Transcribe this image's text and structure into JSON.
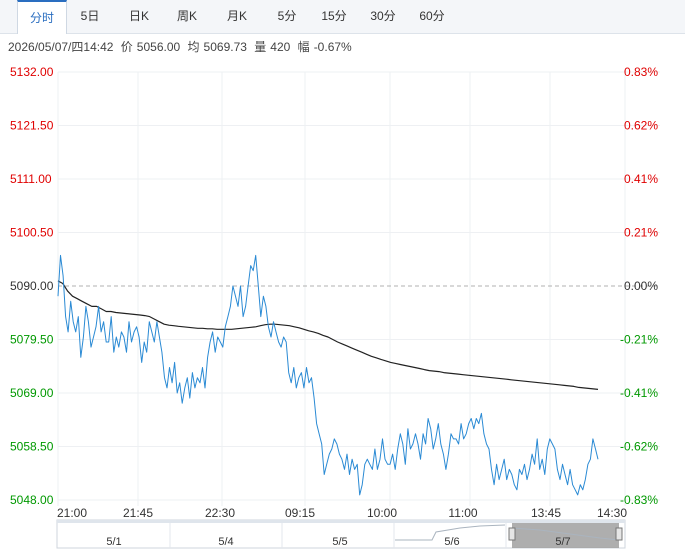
{
  "tabs": [
    {
      "label": "分时",
      "active": true
    },
    {
      "label": "5日",
      "active": false
    },
    {
      "label": "日K",
      "active": false
    },
    {
      "label": "周K",
      "active": false
    },
    {
      "label": "月K",
      "active": false
    },
    {
      "label": "5分",
      "active": false
    },
    {
      "label": "15分",
      "active": false
    },
    {
      "label": "30分",
      "active": false
    },
    {
      "label": "60分",
      "active": false
    }
  ],
  "info": {
    "datetime": "2026/05/07/四14:42",
    "price_label": "价",
    "price": "5056.00",
    "avg_label": "均",
    "avg": "5069.73",
    "vol_label": "量",
    "vol": "420",
    "chg_label": "幅",
    "chg": "-0.67%"
  },
  "chart_data": {
    "type": "line",
    "ylim": [
      5048.0,
      5132.0
    ],
    "prev_close": 5090.0,
    "y_ticks": [
      {
        "price": 5132.0,
        "label": "5132.00",
        "pct": "0.83%"
      },
      {
        "price": 5121.5,
        "label": "5121.50",
        "pct": "0.62%"
      },
      {
        "price": 5111.0,
        "label": "5111.00",
        "pct": "0.41%"
      },
      {
        "price": 5100.5,
        "label": "5100.50",
        "pct": "0.21%"
      },
      {
        "price": 5090.0,
        "label": "5090.00",
        "pct": "0.00%"
      },
      {
        "price": 5079.5,
        "label": "5079.50",
        "pct": "-0.21%"
      },
      {
        "price": 5069.0,
        "label": "5069.00",
        "pct": "-0.41%"
      },
      {
        "price": 5058.5,
        "label": "5058.50",
        "pct": "-0.62%"
      },
      {
        "price": 5048.0,
        "label": "5048.00",
        "pct": "-0.83%"
      }
    ],
    "x_ticks": [
      "21:00",
      "21:45",
      "22:30",
      "09:15",
      "10:00",
      "11:00",
      "13:45",
      "14:30"
    ],
    "colors": {
      "up": "#e00000",
      "down": "#009900",
      "flat": "#333333",
      "price_line": "#2a8ad4",
      "avg_line": "#222222"
    },
    "series": [
      {
        "values": [
          5088,
          5096,
          5092,
          5084,
          5081,
          5087,
          5083,
          5081,
          5084,
          5076,
          5080,
          5086,
          5083,
          5078,
          5080,
          5082,
          5086,
          5081,
          5083,
          5079,
          5079,
          5084,
          5077,
          5080,
          5078,
          5081,
          5080,
          5077,
          5083,
          5079,
          5081,
          5082,
          5080,
          5075,
          5079,
          5077,
          5083,
          5081,
          5079,
          5083,
          5080,
          5077,
          5072,
          5070,
          5074,
          5071,
          5075,
          5069,
          5071,
          5067,
          5070,
          5072,
          5068,
          5073,
          5070,
          5072,
          5071,
          5074,
          5070,
          5076,
          5079,
          5081,
          5077,
          5080,
          5079,
          5078,
          5082,
          5084,
          5086,
          5090,
          5088,
          5086,
          5090,
          5084,
          5086,
          5090,
          5094,
          5093,
          5096,
          5090,
          5084,
          5088,
          5086,
          5082,
          5080,
          5083,
          5081,
          5079,
          5078,
          5080,
          5079,
          5073,
          5071,
          5074,
          5070,
          5072,
          5073,
          5070,
          5074,
          5071,
          5072,
          5068,
          5063,
          5061,
          5059,
          5053,
          5055,
          5057,
          5058,
          5060,
          5059,
          5057,
          5056,
          5054,
          5057,
          5053,
          5056,
          5054,
          5055,
          5049,
          5051,
          5055,
          5056,
          5055,
          5054,
          5058,
          5054,
          5056,
          5060,
          5056,
          5055,
          5055,
          5057,
          5054,
          5058,
          5061,
          5059,
          5055,
          5062,
          5058,
          5059,
          5061,
          5059,
          5056,
          5061,
          5059,
          5064,
          5062,
          5058,
          5060,
          5063,
          5059,
          5057,
          5054,
          5057,
          5061,
          5060,
          5060,
          5059,
          5063,
          5060,
          5061,
          5063,
          5064,
          5062,
          5064,
          5063,
          5065,
          5061,
          5059,
          5058,
          5054,
          5051,
          5055,
          5052,
          5054,
          5056,
          5052,
          5054,
          5053,
          5051,
          5050,
          5054,
          5053,
          5055,
          5052,
          5054,
          5057,
          5055,
          5060,
          5054,
          5056,
          5053,
          5058,
          5060,
          5059,
          5058,
          5054,
          5052,
          5055,
          5053,
          5051,
          5054,
          5051,
          5050,
          5049,
          5051,
          5050,
          5052,
          5055,
          5056,
          5060,
          5058,
          5056
        ]
      },
      {
        "values": [
          5091,
          5090.5,
          5089,
          5088,
          5087.5,
          5087,
          5086.5,
          5086,
          5086,
          5085.5,
          5085,
          5085,
          5084.8,
          5084.7,
          5084.6,
          5084.5,
          5084.4,
          5084.3,
          5084.2,
          5084,
          5083.5,
          5083,
          5082.5,
          5082.3,
          5082.2,
          5082.1,
          5082,
          5081.9,
          5081.8,
          5081.7,
          5081.7,
          5081.6,
          5081.6,
          5081.5,
          5081.5,
          5081.5,
          5081.5,
          5081.6,
          5081.7,
          5081.8,
          5081.9,
          5082,
          5082.2,
          5082.4,
          5082.5,
          5082.5,
          5082.4,
          5082.3,
          5082.2,
          5082,
          5081.8,
          5081.5,
          5081.2,
          5081,
          5080.7,
          5080.3,
          5080,
          5079.5,
          5079,
          5078.6,
          5078.2,
          5077.8,
          5077.4,
          5077,
          5076.6,
          5076.2,
          5075.9,
          5075.6,
          5075.3,
          5075,
          5074.8,
          5074.6,
          5074.4,
          5074.2,
          5074,
          5073.8,
          5073.6,
          5073.4,
          5073.3,
          5073.2,
          5073,
          5072.9,
          5072.8,
          5072.7,
          5072.6,
          5072.5,
          5072.4,
          5072.3,
          5072.2,
          5072.1,
          5072,
          5071.9,
          5071.8,
          5071.7,
          5071.6,
          5071.5,
          5071.4,
          5071.3,
          5071.2,
          5071.1,
          5071,
          5070.9,
          5070.8,
          5070.7,
          5070.6,
          5070.5,
          5070.4,
          5070.3,
          5070.1,
          5070,
          5069.9,
          5069.8,
          5069.7
        ]
      }
    ]
  },
  "navigator": {
    "labels": [
      "5/1",
      "5/4",
      "5/5",
      "5/6",
      "5/7"
    ]
  }
}
